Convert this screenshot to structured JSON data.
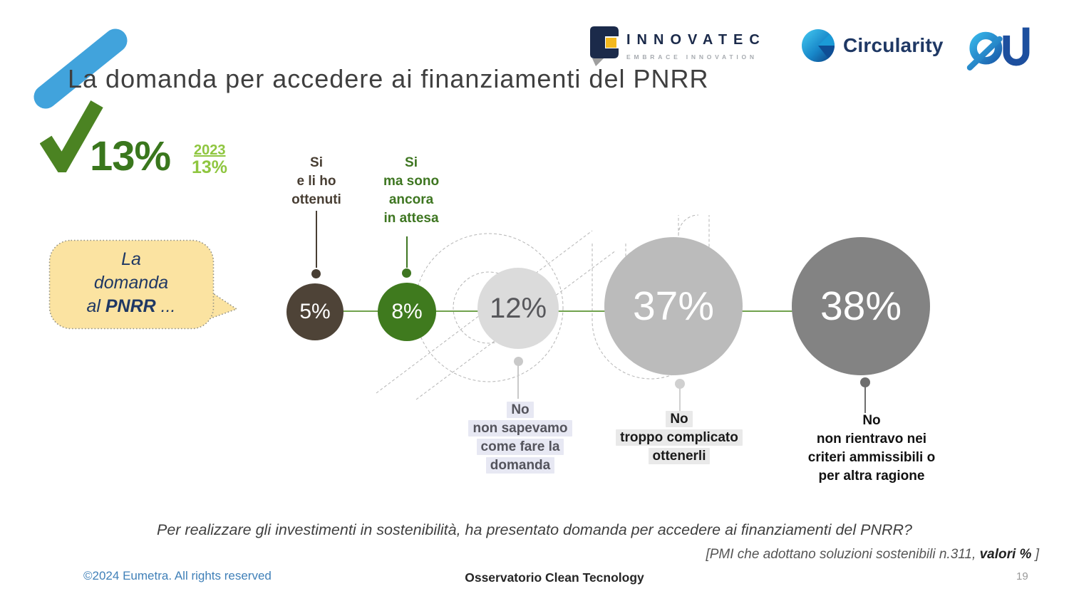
{
  "slide": {
    "title": "La domanda per accedere ai finanziamenti del PNRR",
    "question": "Per realizzare gli investimenti in sostenibilità, ha presentato domanda per accedere ai finanziamenti del PNRR?",
    "source_note": {
      "open": "[PMI che adottano soluzioni sostenibili n.311, ",
      "bold": "valori %",
      "close": " ]"
    },
    "footer": {
      "copyright": "©2024 Eumetra. All rights reserved",
      "center": "Osservatorio Clean Tecnology",
      "page_number": "19"
    }
  },
  "logos": {
    "innovatec": {
      "name": "INNOVATEC",
      "tagline": "EMBRACE INNOVATION"
    },
    "circularity": {
      "name": "Circularity"
    },
    "eu": {
      "name": "eu"
    }
  },
  "badge": {
    "current_value": "13%",
    "previous_year": "2023",
    "previous_value": "13%"
  },
  "callout": {
    "line1": "La",
    "line2": "domanda",
    "line3_pre": "al ",
    "line3_bold": "PNRR",
    "line3_post": " ..."
  },
  "bubbles": [
    {
      "value": "5%",
      "color": "#4E4337",
      "label_lines": [
        "Si",
        "e li ho",
        "ottenuti"
      ]
    },
    {
      "value": "8%",
      "color": "#3F7A1E",
      "label_lines": [
        "Si",
        "ma sono",
        "ancora",
        "in attesa"
      ]
    },
    {
      "value": "12%",
      "color": "#DBDBDB",
      "label_lines": [
        "No",
        "non sapevamo",
        "come fare la",
        "domanda"
      ]
    },
    {
      "value": "37%",
      "color": "#BBBBBB",
      "label_lines": [
        "No",
        "troppo complicato",
        "ottenerli"
      ]
    },
    {
      "value": "38%",
      "color": "#838383",
      "label_lines": [
        "No",
        "non rientravo nei",
        "criteri ammissibili o",
        "per altra ragione"
      ]
    }
  ],
  "chart_data": {
    "type": "bubble",
    "title": "La domanda per accedere ai finanziamenti del PNRR",
    "categories": [
      "Si, e li ho ottenuti",
      "Si, ma sono ancora in attesa",
      "No, non sapevamo come fare la domanda",
      "No, troppo complicato ottenerli",
      "No, non rientravo nei criteri ammissibili o per altra ragione"
    ],
    "values": [
      5,
      8,
      12,
      37,
      38
    ],
    "unit": "%",
    "overall_yes_current": 13,
    "overall_yes_2023": 13,
    "sample_note": "PMI che adottano soluzioni sostenibili n.311, valori %",
    "legend_position": "none"
  },
  "colors": {
    "accent_blue": "#41A3DC",
    "dark_green": "#3A771D",
    "light_green": "#8FC640",
    "line_green": "#70A24D",
    "brown": "#483E33",
    "callout_bg": "#FBE3A1",
    "navy": "#1F3864",
    "footer_blue": "#4080B8",
    "title_gray": "#3F3F3F"
  }
}
